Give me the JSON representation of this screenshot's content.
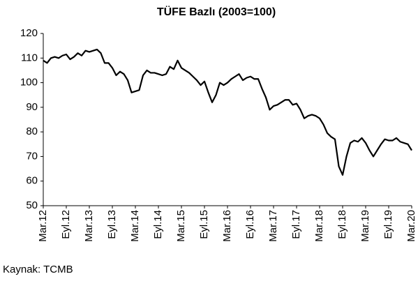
{
  "chart_data": {
    "type": "line",
    "title": "TÜFE Bazlı (2003=100)",
    "source": "Kaynak: TCMB",
    "categories": [
      "Mar.12",
      null,
      null,
      null,
      null,
      null,
      "Eyl.12",
      null,
      null,
      null,
      null,
      null,
      "Mar.13",
      null,
      null,
      null,
      null,
      null,
      "Eyl.13",
      null,
      null,
      null,
      null,
      null,
      "Mar.14",
      null,
      null,
      null,
      null,
      null,
      "Eyl.14",
      null,
      null,
      null,
      null,
      null,
      "Mar.15",
      null,
      null,
      null,
      null,
      null,
      "Eyl.15",
      null,
      null,
      null,
      null,
      null,
      "Mar.16",
      null,
      null,
      null,
      null,
      null,
      "Eyl.16",
      null,
      null,
      null,
      null,
      null,
      "Mar.17",
      null,
      null,
      null,
      null,
      null,
      "Eyl.17",
      null,
      null,
      null,
      null,
      null,
      "Mar.18",
      null,
      null,
      null,
      null,
      null,
      "Eyl.18",
      null,
      null,
      null,
      null,
      null,
      "Mar.19",
      null,
      null,
      null,
      null,
      null,
      "Eyl.19",
      null,
      null,
      null,
      null,
      null,
      "Mar.20"
    ],
    "values": [
      109,
      108,
      110,
      110.5,
      110,
      111,
      111.5,
      109.5,
      110.5,
      112,
      111,
      113,
      112.5,
      113,
      113.5,
      112,
      108,
      108,
      106,
      103,
      104.5,
      103.5,
      101,
      96,
      96.5,
      97,
      103,
      105,
      104,
      104,
      103.5,
      103,
      103.5,
      106.5,
      105.5,
      109,
      106,
      105,
      104,
      102.5,
      101,
      99,
      100.5,
      96,
      92,
      95,
      100,
      99,
      100,
      101.5,
      102.5,
      103.5,
      101,
      102,
      102.5,
      101.5,
      101.5,
      97.5,
      94,
      89,
      90.5,
      91,
      92,
      93,
      93,
      91,
      91.5,
      89,
      85.5,
      86.5,
      87,
      86.5,
      85.5,
      83,
      79.5,
      78,
      77,
      66,
      62.5,
      70,
      75.5,
      76.5,
      76,
      77.5,
      75.5,
      72.5,
      70,
      72.5,
      75,
      77,
      76.5,
      76.5,
      77.5,
      76,
      75.5,
      75,
      72.5
    ],
    "color": "#000000",
    "ylim": [
      50,
      120
    ],
    "yticks": [
      50,
      60,
      70,
      80,
      90,
      100,
      110,
      120
    ],
    "grid": false
  }
}
